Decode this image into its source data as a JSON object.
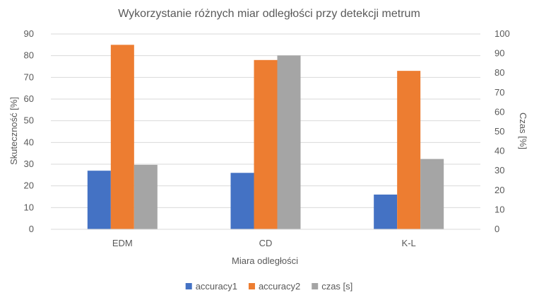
{
  "chart_data": {
    "type": "bar",
    "title": "Wykorzystanie różnych miar odległości przy detekcji metrum",
    "xlabel": "Miara odległości",
    "ylabel": "Skuteczność [%]",
    "y2label": "Czas [%]",
    "categories": [
      "EDM",
      "CD",
      "K-L"
    ],
    "ylim": [
      0,
      90
    ],
    "y2lim": [
      0,
      100
    ],
    "yticks": [
      "0",
      "10",
      "20",
      "30",
      "40",
      "50",
      "60",
      "70",
      "80",
      "90"
    ],
    "y2ticks": [
      "0",
      "10",
      "20",
      "30",
      "40",
      "50",
      "60",
      "70",
      "80",
      "90",
      "100"
    ],
    "grid": true,
    "legend_position": "bottom",
    "series": [
      {
        "name": "accuracy1",
        "axis": "left",
        "color": "#4472c4",
        "values": [
          27,
          26,
          16
        ]
      },
      {
        "name": "accuracy2",
        "axis": "left",
        "color": "#ed7d31",
        "values": [
          85,
          78,
          73
        ]
      },
      {
        "name": "czas [s]",
        "axis": "right",
        "color": "#a5a5a5",
        "values": [
          33,
          89,
          36
        ]
      }
    ]
  }
}
